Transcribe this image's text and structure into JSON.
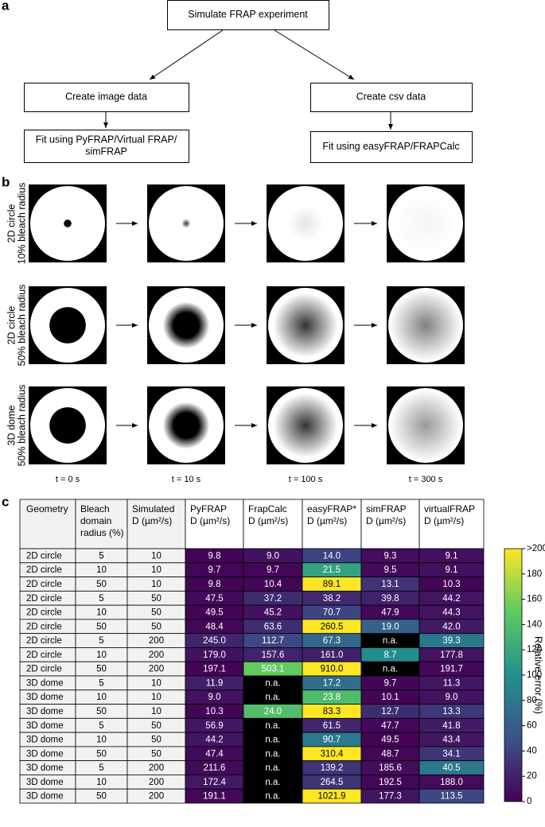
{
  "panel_labels": [
    "a",
    "b",
    "c"
  ],
  "flowchart": {
    "nodes": [
      {
        "lines": [
          "Simulate FRAP experiment"
        ]
      },
      {
        "lines": [
          "Create image data"
        ]
      },
      {
        "lines": [
          "Create csv data"
        ]
      },
      {
        "lines": [
          "Fit using PyFRAP/Virtual FRAP/",
          "simFRAP"
        ]
      },
      {
        "lines": [
          "Fit using easyFRAP/FRAPCalc"
        ]
      }
    ]
  },
  "simulation": {
    "rows": [
      [
        "2D circle",
        "10% bleach radius"
      ],
      [
        "2D circle",
        "50% bleach radius"
      ],
      [
        "3D dome",
        "50% bleach radius"
      ]
    ],
    "times": [
      "t = 0 s",
      "t = 10 s",
      "t = 100 s",
      "t = 300 s"
    ]
  },
  "table": {
    "header": [
      [
        "Geometry"
      ],
      [
        "Bleach",
        "domain",
        "radius (%)"
      ],
      [
        "Simulated",
        "D (µm²/s)"
      ],
      [
        "PyFRAP",
        "D (µm²/s)"
      ],
      [
        "FrapCalc",
        "D (µm²/s)"
      ],
      [
        "easyFRAP*",
        "D (µm²/s)"
      ],
      [
        "simFRAP",
        "D (µm²/s)"
      ],
      [
        "virtualFRAP",
        "D (µm²/s)"
      ]
    ],
    "rows": [
      [
        "2D circle",
        5,
        10,
        "9.8",
        "9.0",
        "14.0",
        "9.3",
        "9.1"
      ],
      [
        "2D circle",
        10,
        10,
        "9.7",
        "9.7",
        "21.5",
        "9.5",
        "9.1"
      ],
      [
        "2D circle",
        50,
        10,
        "9.8",
        "10.4",
        "89.1",
        "13.1",
        "10.3"
      ],
      [
        "2D circle",
        5,
        50,
        "47.5",
        "37.2",
        "38.2",
        "39.8",
        "44.2"
      ],
      [
        "2D circle",
        10,
        50,
        "49.5",
        "45.2",
        "70.7",
        "47.9",
        "44.3"
      ],
      [
        "2D circle",
        50,
        50,
        "48.4",
        "63.6",
        "260.5",
        "19.0",
        "42.0"
      ],
      [
        "2D circle",
        5,
        200,
        "245.0",
        "112.7",
        "67.3",
        "n.a.",
        "39.3"
      ],
      [
        "2D circle",
        10,
        200,
        "179.0",
        "157.6",
        "161.0",
        "8.7",
        "177.8"
      ],
      [
        "2D circle",
        50,
        200,
        "197.1",
        "503.1",
        "910.0",
        "n.a.",
        "191.7"
      ],
      [
        "3D dome",
        5,
        10,
        "11.9",
        "n.a.",
        "17.2",
        "9.7",
        "11.3"
      ],
      [
        "3D dome",
        10,
        10,
        "9.0",
        "n.a.",
        "23.8",
        "10.1",
        "9.0"
      ],
      [
        "3D dome",
        50,
        10,
        "10.3",
        "24.0",
        "83.3",
        "12.7",
        "13.3"
      ],
      [
        "3D dome",
        5,
        50,
        "56.9",
        "n.a.",
        "61.5",
        "47.7",
        "41.8"
      ],
      [
        "3D dome",
        10,
        50,
        "44.2",
        "n.a.",
        "90.7",
        "49.5",
        "43.4"
      ],
      [
        "3D dome",
        50,
        50,
        "47.4",
        "n.a.",
        "310.4",
        "48.7",
        "34.1"
      ],
      [
        "3D dome",
        5,
        200,
        "211.6",
        "n.a.",
        "139.2",
        "185.6",
        "40.5"
      ],
      [
        "3D dome",
        10,
        200,
        "172.4",
        "n.a.",
        "264.5",
        "192.5",
        "188.0"
      ],
      [
        "3D dome",
        50,
        200,
        "191.1",
        "n.a.",
        "1021.9",
        "177.3",
        "113.5"
      ]
    ]
  },
  "colorbar": {
    "label": "Relative error (%)",
    "lim": [
      0,
      200
    ],
    "ticks": [
      0,
      20,
      40,
      60,
      80,
      100,
      120,
      140,
      160,
      180,
      {
        "value": 200,
        "label": ">200"
      }
    ]
  }
}
